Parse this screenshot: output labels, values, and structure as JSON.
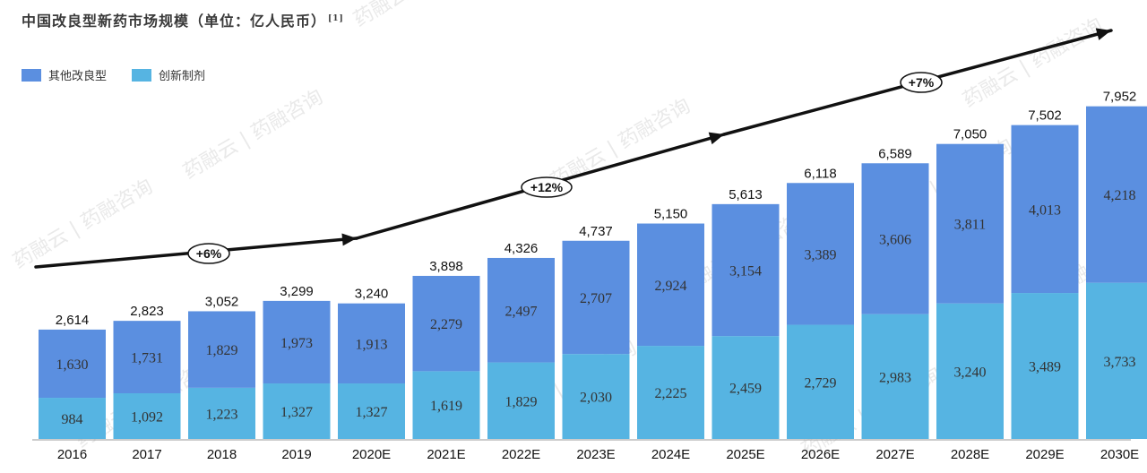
{
  "chart_data": {
    "type": "bar",
    "stacked": true,
    "title": "中国改良型新药市场规模（单位：亿人民币）",
    "title_ref": "[1]",
    "categories": [
      "2016",
      "2017",
      "2018",
      "2019",
      "2020E",
      "2021E",
      "2022E",
      "2023E",
      "2024E",
      "2025E",
      "2026E",
      "2027E",
      "2028E",
      "2029E",
      "2030E"
    ],
    "series": [
      {
        "name": "创新制剂",
        "color": "#56b4e2",
        "values": [
          984,
          1092,
          1223,
          1327,
          1327,
          1619,
          1829,
          2030,
          2225,
          2459,
          2729,
          2983,
          3240,
          3489,
          3733
        ]
      },
      {
        "name": "其他改良型",
        "color": "#5b8fe0",
        "values": [
          1630,
          1731,
          1829,
          1973,
          1913,
          2279,
          2497,
          2707,
          2924,
          3154,
          3389,
          3606,
          3811,
          4013,
          4218
        ]
      }
    ],
    "series_labels": [
      [
        "984",
        "1,092",
        "1,223",
        "1,327",
        "1,327",
        "1,619",
        "1,829",
        "2,030",
        "2,225",
        "2,459",
        "2,729",
        "2,983",
        "3,240",
        "3,489",
        "3,733"
      ],
      [
        "1,630",
        "1,731",
        "1,829",
        "1,973",
        "1,913",
        "2,279",
        "2,497",
        "2,707",
        "2,924",
        "3,154",
        "3,389",
        "3,606",
        "3,811",
        "4,013",
        "4,218"
      ]
    ],
    "totals": [
      2614,
      2823,
      3052,
      3299,
      3240,
      3898,
      4326,
      4737,
      5150,
      5613,
      6118,
      6589,
      7050,
      7502,
      7952
    ],
    "total_labels": [
      "2,614",
      "2,823",
      "3,052",
      "3,299",
      "3,240",
      "3,898",
      "4,326",
      "4,737",
      "5,150",
      "5,613",
      "6,118",
      "6,589",
      "7,050",
      "7,502",
      "7,952"
    ],
    "ylim": [
      0,
      9100
    ],
    "growth_annotations": [
      {
        "label": "+6%",
        "from": "2016",
        "to": "2020E"
      },
      {
        "label": "+12%",
        "from": "2020E",
        "to": "2025E"
      },
      {
        "label": "+7%",
        "from": "2025E",
        "to": "2030E"
      }
    ],
    "legend": [
      {
        "name": "其他改良型",
        "color": "#5b8fe0"
      },
      {
        "name": "创新制剂",
        "color": "#56b4e2"
      }
    ]
  },
  "watermark": "药融云 | 药融咨询"
}
